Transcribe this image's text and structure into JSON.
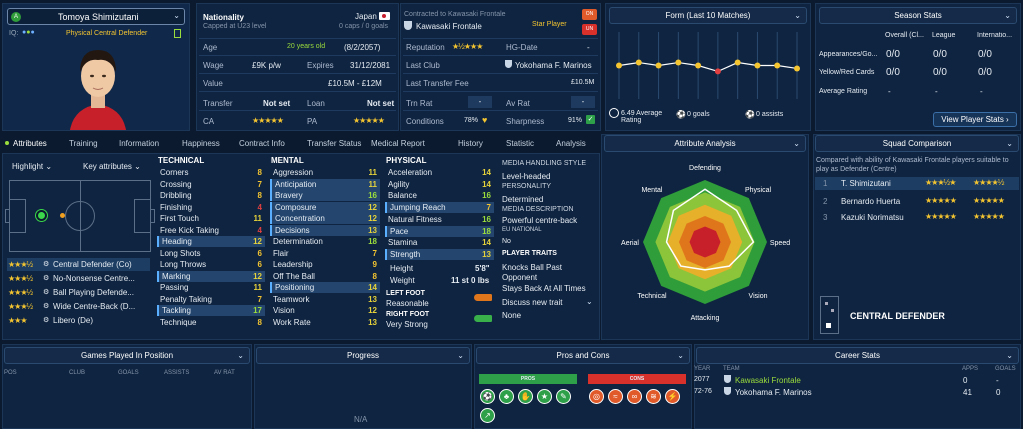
{
  "player": {
    "name": "Tomoya Shimizutani",
    "role": "Physical Central Defender",
    "iq_label": "IQ:",
    "badge": "A"
  },
  "info": {
    "nationality_label": "Nationality",
    "nationality": "Japan",
    "caps_note": "Capped at U23 level",
    "caps": "0 caps / 0 goals",
    "age_label": "Age",
    "age": "20 years old",
    "dob": "(8/2/2057)",
    "wage_label": "Wage",
    "wage": "£9K p/w",
    "expires_label": "Expires",
    "expires": "31/12/2081",
    "value_label": "Value",
    "value": "£10.5M - £12M",
    "transfer_label": "Transfer",
    "transfer": "Not set",
    "loan_label": "Loan",
    "loan": "Not set",
    "ca_label": "CA",
    "pa_label": "PA"
  },
  "contract": {
    "contracted_to": "Contracted to Kawasaki Frontale",
    "club": "Kawasaki Frontale",
    "star_player": "Star Player",
    "reputation_label": "Reputation",
    "hg_label": "HG-Date",
    "hg_value": "-",
    "last_club_label": "Last Club",
    "last_club": "Yokohama F. Marinos",
    "last_fee_label": "Last Transfer Fee",
    "last_fee": "£10.5M",
    "trn_rat_label": "Trn Rat",
    "trn_rat": "-",
    "av_rat_label": "Av Rat",
    "av_rat": "-",
    "conditions_label": "Conditions",
    "conditions": "78%",
    "sharpness_label": "Sharpness",
    "sharpness": "91%",
    "btn_up": "ON",
    "btn_down": "UN"
  },
  "form": {
    "title": "Form (Last 10 Matches)",
    "avg_rating": "6.49 Average Rating",
    "goals": "0 goals",
    "assists": "0 assists",
    "values": [
      6.5,
      6.6,
      6.5,
      6.6,
      6.5,
      6.3,
      6.6,
      6.5,
      6.5,
      6.4
    ],
    "point_colors": [
      "#f4c531",
      "#f4c531",
      "#f4c531",
      "#f4c531",
      "#f4c531",
      "#e24040",
      "#f4c531",
      "#f4c531",
      "#f4c531",
      "#f4c531"
    ]
  },
  "season": {
    "title": "Season Stats",
    "cols": [
      "Overall (Cl...",
      "League",
      "Internatio..."
    ],
    "rows": [
      {
        "label": "Appearances/Go...",
        "vals": [
          "0/0",
          "0/0",
          "0/0"
        ]
      },
      {
        "label": "Yellow/Red Cards",
        "vals": [
          "0/0",
          "0/0",
          "0/0"
        ]
      },
      {
        "label": "Average Rating",
        "vals": [
          "-",
          "-",
          "-"
        ]
      }
    ],
    "view_btn": "View Player Stats"
  },
  "tabs": [
    "Attributes",
    "Training",
    "Information",
    "Happiness",
    "Contract Info",
    "Transfer Status",
    "Medical Report",
    "History",
    "Statistic",
    "Analysis"
  ],
  "controls": {
    "highlight": "Highlight",
    "key_attr": "Key attributes"
  },
  "positions": [
    {
      "stars": 3,
      "label": "Central Defender (Co)"
    },
    {
      "stars": 3,
      "label": "No-Nonsense Centre..."
    },
    {
      "stars": 3,
      "label": "Ball Playing Defende..."
    },
    {
      "stars": 3,
      "label": "Wide Centre-Back (D..."
    },
    {
      "stars": 3,
      "label": "Libero (De)"
    }
  ],
  "technical": {
    "title": "TECHNICAL",
    "items": [
      [
        "Corners",
        "8"
      ],
      [
        "Crossing",
        "7"
      ],
      [
        "Dribbling",
        "8"
      ],
      [
        "Finishing",
        "4"
      ],
      [
        "First Touch",
        "11"
      ],
      [
        "Free Kick Taking",
        "4"
      ],
      [
        "Heading",
        "12"
      ],
      [
        "Long Shots",
        "6"
      ],
      [
        "Long Throws",
        "6"
      ],
      [
        "Marking",
        "12"
      ],
      [
        "Passing",
        "11"
      ],
      [
        "Penalty Taking",
        "7"
      ],
      [
        "Tackling",
        "17"
      ],
      [
        "Technique",
        "8"
      ]
    ]
  },
  "mental": {
    "title": "MENTAL",
    "items": [
      [
        "Aggression",
        "11"
      ],
      [
        "Anticipation",
        "11"
      ],
      [
        "Bravery",
        "16"
      ],
      [
        "Composure",
        "12"
      ],
      [
        "Concentration",
        "12"
      ],
      [
        "Decisions",
        "13"
      ],
      [
        "Determination",
        "18"
      ],
      [
        "Flair",
        "7"
      ],
      [
        "Leadership",
        "9"
      ],
      [
        "Off The Ball",
        "8"
      ],
      [
        "Positioning",
        "14"
      ],
      [
        "Teamwork",
        "13"
      ],
      [
        "Vision",
        "12"
      ],
      [
        "Work Rate",
        "13"
      ]
    ]
  },
  "physical": {
    "title": "PHYSICAL",
    "items": [
      [
        "Acceleration",
        "14"
      ],
      [
        "Agility",
        "14"
      ],
      [
        "Balance",
        "16"
      ],
      [
        "Jumping Reach",
        "7"
      ],
      [
        "Natural Fitness",
        "16"
      ],
      [
        "Pace",
        "18"
      ],
      [
        "Stamina",
        "14"
      ],
      [
        "Strength",
        "13"
      ]
    ],
    "height_label": "Height",
    "height": "5'8\"",
    "weight_label": "Weight",
    "weight": "11 st 0 lbs",
    "left_foot_label": "LEFT FOOT",
    "left_foot": "Reasonable",
    "right_foot_label": "RIGHT FOOT",
    "right_foot": "Very Strong"
  },
  "media": {
    "style_label": "MEDIA HANDLING STYLE",
    "style": "Level-headed",
    "personality_label": "PERSONALITY",
    "personality": "Determined",
    "desc_label": "MEDIA DESCRIPTION",
    "desc": "Powerful centre-back",
    "eu_label": "EU NATIONAL",
    "eu": "No",
    "traits_label": "PLAYER TRAITS",
    "traits": [
      "Knocks Ball Past Opponent",
      "Stays Back At All Times"
    ],
    "discuss": "Discuss new trait",
    "none": "None"
  },
  "analysis": {
    "title": "Attribute Analysis",
    "axes": [
      "Defending",
      "Physical",
      "Speed",
      "Vision",
      "Attacking",
      "Technical",
      "Aerial",
      "Mental"
    ],
    "values": [
      0.85,
      0.72,
      0.78,
      0.55,
      0.45,
      0.55,
      0.62,
      0.72
    ]
  },
  "squad": {
    "title": "Squad Comparison",
    "desc": "Compared with ability of Kawasaki Frontale players suitable to play as Defender (Centre)",
    "rows": [
      {
        "rank": "1",
        "name": "T. Shimizutani",
        "ca": 3,
        "pa": 5
      },
      {
        "rank": "2",
        "name": "Bernardo Huerta",
        "ca": 3,
        "pa": 4
      },
      {
        "rank": "3",
        "name": "Kazuki Norimatsu",
        "ca": 3,
        "pa": 4
      }
    ],
    "position": "CENTRAL DEFENDER"
  },
  "games": {
    "title": "Games Played In Position",
    "cols": [
      "POS",
      "CLUB",
      "GOALS",
      "ASSISTS",
      "AV RAT"
    ]
  },
  "progress": {
    "title": "Progress",
    "na": "N/A"
  },
  "proscons": {
    "title": "Pros and Cons",
    "pros": "PROS",
    "cons": "CONS"
  },
  "career": {
    "title": "Career Stats",
    "cols": [
      "YEAR",
      "TEAM",
      "APPS",
      "GOALS"
    ],
    "rows": [
      {
        "year": "2077",
        "team": "Kawasaki Frontale",
        "apps": "0",
        "goals": "-"
      },
      {
        "year": "72-76",
        "team": "Yokohama F. Marinos",
        "apps": "41",
        "goals": "0"
      }
    ]
  },
  "colors": {
    "accent": "#9bdd3c",
    "star": "#f4c531",
    "panel": "#0f2440"
  }
}
